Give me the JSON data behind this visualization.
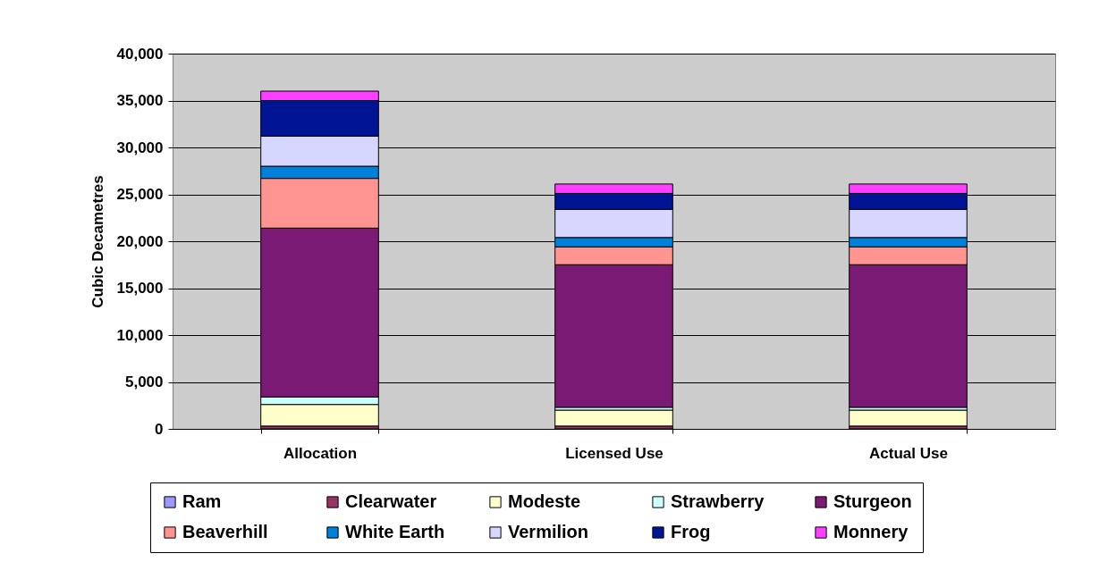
{
  "chart_data": {
    "type": "bar",
    "stacked": true,
    "ylabel": "Cubic Decametres",
    "categories": [
      "Allocation",
      "Licensed Use",
      "Actual Use"
    ],
    "series": [
      {
        "name": "Ram",
        "color": "#9999ff",
        "values": [
          null,
          null,
          null
        ]
      },
      {
        "name": "Clearwater",
        "color": "#993366",
        "values": [
          300,
          300,
          300
        ]
      },
      {
        "name": "Modeste",
        "color": "#ffffcc",
        "values": [
          2300,
          1700,
          1700
        ]
      },
      {
        "name": "Strawberry",
        "color": "#ccffff",
        "values": [
          800,
          300,
          300
        ]
      },
      {
        "name": "Sturgeon",
        "color": "#7a1a75",
        "values": [
          18000,
          15200,
          15200
        ]
      },
      {
        "name": "Beaverhill",
        "color": "#ff9490",
        "values": [
          5300,
          1900,
          1900
        ]
      },
      {
        "name": "White Earth",
        "color": "#0080d8",
        "values": [
          1300,
          1000,
          1000
        ]
      },
      {
        "name": "Vermilion",
        "color": "#d6d6fe",
        "values": [
          3200,
          3000,
          3000
        ]
      },
      {
        "name": "Frog",
        "color": "#001494",
        "values": [
          3800,
          1700,
          1700
        ]
      },
      {
        "name": "Monnery",
        "color": "#ff3fff",
        "values": [
          1000,
          1000,
          1000
        ]
      }
    ],
    "ylim": [
      0,
      40000
    ],
    "yticks": [
      {
        "value": 0,
        "label": "0"
      },
      {
        "value": 5000,
        "label": "5,000"
      },
      {
        "value": 10000,
        "label": "10,000"
      },
      {
        "value": 15000,
        "label": "15,000"
      },
      {
        "value": 20000,
        "label": "20,000"
      },
      {
        "value": 25000,
        "label": "25,000"
      },
      {
        "value": 30000,
        "label": "30,000"
      },
      {
        "value": 35000,
        "label": "35,000"
      },
      {
        "value": 40000,
        "label": "40,000"
      }
    ],
    "grid": "y",
    "legend": "bottom"
  }
}
